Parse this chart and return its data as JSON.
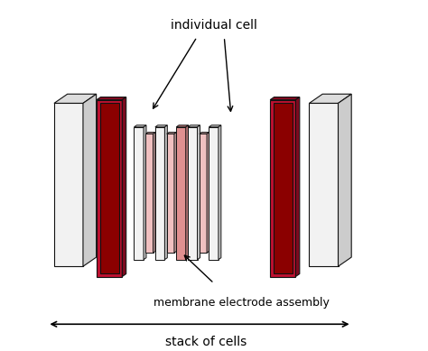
{
  "label_individual_cell": "individual cell",
  "label_membrane": "membrane electrode assembly",
  "label_stack": "stack of cells",
  "color_dark_red": "#8B0000",
  "color_red": "#C01030",
  "color_light_pink": "#F0C0C0",
  "color_medium_pink": "#E09090",
  "color_white": "#FFFFFF",
  "color_light_gray": "#F2F2F2",
  "color_gray_top": "#DDDDDD",
  "color_gray_side": "#CCCCCC",
  "color_outline": "#111111",
  "bg_color": "#FFFFFF",
  "pdx": 0.13,
  "pdy": 0.09
}
